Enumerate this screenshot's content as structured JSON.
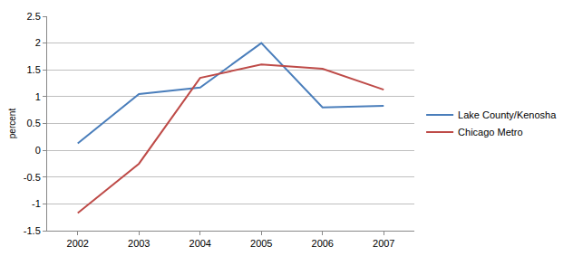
{
  "chart_data": {
    "type": "line",
    "y_label": "percent",
    "categories": [
      "2002",
      "2003",
      "2004",
      "2005",
      "2006",
      "2007"
    ],
    "series": [
      {
        "name": "Lake County/Kenosha",
        "color": "#4a7ebb",
        "values": [
          0.13,
          1.05,
          1.17,
          2.0,
          0.8,
          0.83
        ]
      },
      {
        "name": "Chicago Metro",
        "color": "#be4b48",
        "values": [
          -1.17,
          -0.25,
          1.35,
          1.6,
          1.52,
          1.13
        ]
      }
    ],
    "ylim": [
      -1.5,
      2.5
    ],
    "yticks": [
      -1.5,
      -1,
      -0.5,
      0,
      0.5,
      1,
      1.5,
      2,
      2.5
    ],
    "grid": true,
    "legend": "right"
  }
}
